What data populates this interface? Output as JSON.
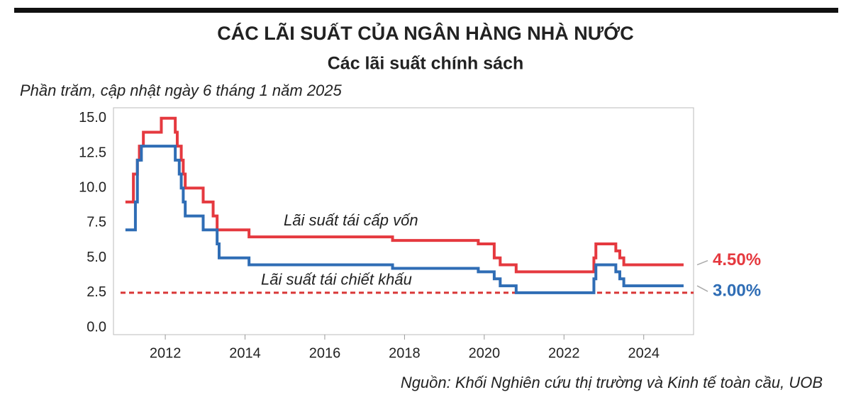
{
  "chart_data": {
    "type": "line",
    "title": "CÁC LÃI SUẤT CỦA NGÂN HÀNG NHÀ NƯỚC",
    "subtitle": "Các lãi suất chính sách",
    "unit_note": "Phần trăm, cập nhật ngày 6 tháng 1 năm 2025",
    "source": "Nguồn: Khối Nghiên cứu thị trường và Kinh tế toàn cầu, UOB",
    "step": true,
    "xlim": [
      2010.7,
      2025.25
    ],
    "ylim": [
      -0.5,
      15.75
    ],
    "xticks": [
      2012,
      2014,
      2016,
      2018,
      2020,
      2022,
      2024
    ],
    "yticks": [
      {
        "value": 0,
        "label": "0.0"
      },
      2.5,
      {
        "value": 5,
        "label": "5.0"
      },
      7.5,
      {
        "value": 10,
        "label": "10.0"
      },
      12.5,
      {
        "value": 15,
        "label": "15.0"
      }
    ],
    "grid": false,
    "reference_line": {
      "value": 2.5,
      "color": "#d93636"
    },
    "series": [
      {
        "name": "Lãi suất tái cấp vốn",
        "color": "#e5393f",
        "end_label": "4.50%",
        "x": [
          2011.0,
          2011.2,
          2011.2,
          2011.3,
          2011.3,
          2011.35,
          2011.35,
          2011.45,
          2011.45,
          2011.9,
          2011.9,
          2012.25,
          2012.25,
          2012.3,
          2012.3,
          2012.4,
          2012.4,
          2012.45,
          2012.45,
          2012.5,
          2012.5,
          2012.95,
          2012.95,
          2013.2,
          2013.2,
          2013.3,
          2013.3,
          2014.1,
          2014.1,
          2017.7,
          2017.7,
          2019.85,
          2019.85,
          2020.25,
          2020.25,
          2020.4,
          2020.4,
          2020.8,
          2020.8,
          2022.75,
          2022.75,
          2022.8,
          2022.8,
          2023.3,
          2023.3,
          2023.4,
          2023.4,
          2023.5,
          2023.5,
          2025.0
        ],
        "values": [
          9,
          9,
          11,
          11,
          12,
          12,
          13,
          13,
          14,
          14,
          15,
          15,
          14,
          14,
          13,
          13,
          12,
          12,
          11,
          11,
          10,
          10,
          9,
          9,
          8,
          8,
          7,
          7,
          6.5,
          6.5,
          6.25,
          6.25,
          6,
          6,
          5,
          5,
          4.5,
          4.5,
          4,
          4,
          5,
          5,
          6,
          6,
          5.5,
          5.5,
          5,
          5,
          4.5,
          4.5
        ]
      },
      {
        "name": "Lãi suất tái chiết khấu",
        "color": "#2f6db5",
        "end_label": "3.00%",
        "x": [
          2011.0,
          2011.25,
          2011.25,
          2011.3,
          2011.3,
          2011.4,
          2011.4,
          2012.25,
          2012.25,
          2012.35,
          2012.35,
          2012.4,
          2012.4,
          2012.45,
          2012.45,
          2012.5,
          2012.5,
          2012.95,
          2012.95,
          2013.3,
          2013.3,
          2013.35,
          2013.35,
          2014.1,
          2014.1,
          2017.7,
          2017.7,
          2019.85,
          2019.85,
          2020.25,
          2020.25,
          2020.4,
          2020.4,
          2020.8,
          2020.8,
          2022.75,
          2022.75,
          2022.8,
          2022.8,
          2023.3,
          2023.3,
          2023.4,
          2023.4,
          2023.5,
          2023.5,
          2025.0
        ],
        "values": [
          7,
          7,
          9,
          9,
          12,
          12,
          13,
          13,
          12,
          12,
          11,
          11,
          10,
          10,
          9,
          9,
          8,
          8,
          7,
          7,
          6,
          6,
          5,
          5,
          4.5,
          4.5,
          4.25,
          4.25,
          4,
          4,
          3.5,
          3.5,
          3,
          3,
          2.5,
          2.5,
          3.5,
          3.5,
          4.5,
          4.5,
          4,
          4,
          3.5,
          3.5,
          3,
          3
        ]
      }
    ]
  }
}
